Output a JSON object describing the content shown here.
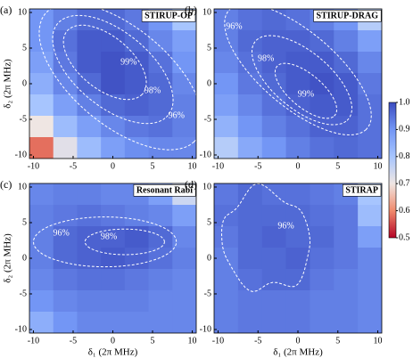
{
  "chart_data": [
    {
      "type": "heatmap",
      "panel_label": "(a)",
      "title": "STIRUP-OP",
      "ylabel": "δ₂ (2π MHz)",
      "x": [
        -9,
        -6,
        -3,
        0,
        3,
        6,
        9
      ],
      "y": [
        9,
        6,
        3,
        0,
        -3,
        -6,
        -9
      ],
      "values": [
        [
          0.9,
          0.93,
          0.96,
          0.96,
          0.94,
          0.9,
          0.8
        ],
        [
          0.9,
          0.95,
          0.98,
          0.98,
          0.96,
          0.92,
          0.88
        ],
        [
          0.88,
          0.94,
          0.98,
          0.99,
          0.98,
          0.95,
          0.9
        ],
        [
          0.85,
          0.92,
          0.96,
          0.99,
          0.98,
          0.96,
          0.92
        ],
        [
          0.8,
          0.88,
          0.93,
          0.96,
          0.97,
          0.96,
          0.93
        ],
        [
          0.7,
          0.82,
          0.88,
          0.92,
          0.94,
          0.95,
          0.93
        ],
        [
          0.58,
          0.72,
          0.82,
          0.88,
          0.91,
          0.92,
          0.92
        ]
      ],
      "xlim": [
        -10.5,
        10.5
      ],
      "ylim": [
        -10.5,
        10.5
      ],
      "xticks": [
        -10,
        -5,
        0,
        5,
        10
      ],
      "yticks": [
        -10,
        -5,
        0,
        5,
        10
      ],
      "contours": [
        {
          "value": 0.99,
          "label": "99%"
        },
        {
          "value": 0.98,
          "label": "98%"
        },
        {
          "value": 0.96,
          "label": "96%"
        }
      ]
    },
    {
      "type": "heatmap",
      "panel_label": "(b)",
      "title": "STIRUP-DRAG",
      "x": [
        -9,
        -6,
        -3,
        0,
        3,
        6,
        9
      ],
      "y": [
        9,
        6,
        3,
        0,
        -3,
        -6,
        -9
      ],
      "values": [
        [
          0.93,
          0.95,
          0.96,
          0.95,
          0.93,
          0.9,
          0.78
        ],
        [
          0.93,
          0.96,
          0.97,
          0.97,
          0.96,
          0.93,
          0.88
        ],
        [
          0.92,
          0.95,
          0.97,
          0.98,
          0.98,
          0.96,
          0.92
        ],
        [
          0.9,
          0.94,
          0.96,
          0.98,
          0.99,
          0.98,
          0.94
        ],
        [
          0.88,
          0.92,
          0.95,
          0.97,
          0.98,
          0.98,
          0.95
        ],
        [
          0.84,
          0.9,
          0.93,
          0.95,
          0.97,
          0.97,
          0.95
        ],
        [
          0.78,
          0.86,
          0.9,
          0.93,
          0.95,
          0.96,
          0.95
        ]
      ],
      "xlim": [
        -10.5,
        10.5
      ],
      "ylim": [
        -10.5,
        10.5
      ],
      "xticks": [
        -10,
        -5,
        0,
        5,
        10
      ],
      "yticks": [
        -10,
        -5,
        0,
        5,
        10
      ],
      "contours": [
        {
          "value": 0.96,
          "label": "96%"
        },
        {
          "value": 0.98,
          "label": "98%"
        },
        {
          "value": 0.99,
          "label": "99%"
        }
      ]
    },
    {
      "type": "heatmap",
      "panel_label": "(c)",
      "title": "Resonant Rabi",
      "ylabel": "δ₂ (2π MHz)",
      "xlabel": "δ₁ (2π MHz)",
      "x": [
        -9,
        -6,
        -3,
        0,
        3,
        6,
        9
      ],
      "y": [
        9,
        6,
        3,
        0,
        -3,
        -6,
        -9
      ],
      "values": [
        [
          0.92,
          0.93,
          0.93,
          0.92,
          0.92,
          0.88,
          0.75
        ],
        [
          0.93,
          0.94,
          0.95,
          0.94,
          0.93,
          0.92,
          0.88
        ],
        [
          0.93,
          0.96,
          0.97,
          0.97,
          0.98,
          0.96,
          0.92
        ],
        [
          0.93,
          0.96,
          0.97,
          0.98,
          0.97,
          0.95,
          0.93
        ],
        [
          0.92,
          0.94,
          0.95,
          0.95,
          0.94,
          0.93,
          0.92
        ],
        [
          0.9,
          0.92,
          0.93,
          0.93,
          0.93,
          0.92,
          0.92
        ],
        [
          0.85,
          0.9,
          0.92,
          0.92,
          0.92,
          0.92,
          0.92
        ]
      ],
      "xlim": [
        -10.5,
        10.5
      ],
      "ylim": [
        -10.5,
        10.5
      ],
      "xticks": [
        -10,
        -5,
        0,
        5,
        10
      ],
      "yticks": [
        -10,
        -5,
        0,
        5,
        10
      ],
      "contours": [
        {
          "value": 0.96,
          "label": "96%"
        },
        {
          "value": 0.98,
          "label": "98%"
        }
      ]
    },
    {
      "type": "heatmap",
      "panel_label": "(d)",
      "title": "STIRAP",
      "xlabel": "δ₁ (2π MHz)",
      "x": [
        -9,
        -6,
        -3,
        0,
        3,
        6,
        9
      ],
      "y": [
        9,
        6,
        3,
        0,
        -3,
        -6,
        -9
      ],
      "values": [
        [
          0.94,
          0.96,
          0.95,
          0.95,
          0.94,
          0.93,
          0.8
        ],
        [
          0.95,
          0.96,
          0.96,
          0.96,
          0.95,
          0.94,
          0.82
        ],
        [
          0.94,
          0.96,
          0.97,
          0.96,
          0.96,
          0.94,
          0.88
        ],
        [
          0.93,
          0.96,
          0.96,
          0.97,
          0.95,
          0.94,
          0.92
        ],
        [
          0.93,
          0.95,
          0.96,
          0.96,
          0.94,
          0.93,
          0.92
        ],
        [
          0.93,
          0.94,
          0.94,
          0.94,
          0.93,
          0.93,
          0.92
        ],
        [
          0.93,
          0.94,
          0.94,
          0.94,
          0.93,
          0.93,
          0.92
        ]
      ],
      "xlim": [
        -10.5,
        10.5
      ],
      "ylim": [
        -10.5,
        10.5
      ],
      "xticks": [
        -10,
        -5,
        0,
        5,
        10
      ],
      "yticks": [
        -10,
        -5,
        0,
        5,
        10
      ],
      "contours": [
        {
          "value": 0.96,
          "label": "96%"
        }
      ]
    }
  ],
  "colorbar": {
    "ylim": [
      0.5,
      1.0
    ],
    "yticks": [
      0.5,
      0.6,
      0.7,
      0.8,
      0.9,
      {
        "value": 1.0,
        "label": "1.0"
      }
    ],
    "colors": [
      "#b40426",
      "#f08a6c",
      "#efe6e3",
      "#a7c5fe",
      "#7396f5",
      "#3b4cc0"
    ]
  }
}
